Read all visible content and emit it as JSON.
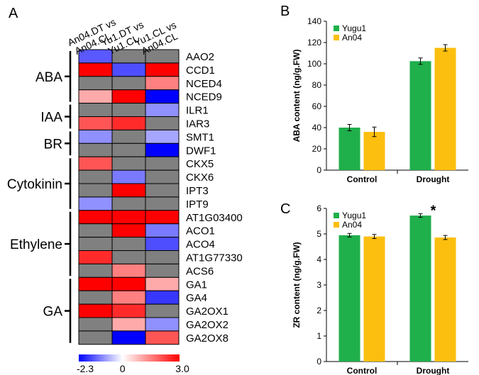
{
  "chart_data": [
    {
      "panel": "A",
      "type": "heatmap",
      "columns": [
        "An04.DT vs An04.CL",
        "Yu1.DT vs Yu1.CL",
        "Yu1.CL vs An04.CL"
      ],
      "column_lines": [
        [
          "An04.DT vs",
          "An04.CL"
        ],
        [
          "Yu1.DT vs",
          "Yu1.CL"
        ],
        [
          "Yu1.CL vs",
          "An04.CL"
        ]
      ],
      "rows": [
        "AAO2",
        "CCD1",
        "NCED4",
        "NCED9",
        "ILR1",
        "IAR3",
        "SMT1",
        "DWF1",
        "CKX5",
        "CKX6",
        "IPT3",
        "IPT9",
        "AT1G03400",
        "ACO1",
        "ACO4",
        "AT1G77330",
        "ACS6",
        "GA1",
        "GA4",
        "GA2OX1",
        "GA2OX2",
        "GA2OX8"
      ],
      "values": [
        [
          -1.5,
          0,
          0
        ],
        [
          3.0,
          -1.6,
          3.0
        ],
        [
          0,
          0,
          1.5
        ],
        [
          1.0,
          3.0,
          -2.3
        ],
        [
          0,
          0,
          -1.0
        ],
        [
          2.0,
          2.5,
          0
        ],
        [
          -1.0,
          0,
          -0.8
        ],
        [
          0,
          0,
          -2.3
        ],
        [
          2.0,
          0,
          0
        ],
        [
          0,
          -1.2,
          0
        ],
        [
          0,
          3.0,
          0
        ],
        [
          -1.0,
          0,
          0
        ],
        [
          3.0,
          3.0,
          3.0
        ],
        [
          0,
          3.0,
          -1.2
        ],
        [
          0,
          0,
          -1.6
        ],
        [
          2.5,
          0,
          0
        ],
        [
          0,
          1.5,
          0
        ],
        [
          3.0,
          3.0,
          1.0
        ],
        [
          0,
          1.5,
          -1.8
        ],
        [
          3.0,
          2.5,
          0
        ],
        [
          0,
          1.0,
          -1.0
        ],
        [
          0,
          -2.3,
          2.0
        ]
      ],
      "groups": [
        {
          "name": "ABA",
          "start": 0,
          "end": 3
        },
        {
          "name": "IAA",
          "start": 4,
          "end": 5
        },
        {
          "name": "BR",
          "start": 6,
          "end": 7
        },
        {
          "name": "Cytokinin",
          "start": 8,
          "end": 11
        },
        {
          "name": "Ethylene",
          "start": 12,
          "end": 16
        },
        {
          "name": "GA",
          "start": 17,
          "end": 21
        }
      ],
      "neutral_color": "#808080",
      "colorbar": {
        "min": -2.3,
        "mid": 0,
        "max": 3.0,
        "min_label": "-2.3",
        "mid_label": "0",
        "max_label": "3.0",
        "low_color": "#0000ff",
        "mid_color": "#ffffff",
        "high_color": "#ff0000"
      }
    },
    {
      "panel": "B",
      "type": "bar",
      "categories": [
        "Control",
        "Drought"
      ],
      "series": [
        {
          "name": "Yugu1",
          "color": "#1faf4b",
          "values": [
            40,
            102.5
          ],
          "errors": [
            3,
            3
          ]
        },
        {
          "name": "An04",
          "color": "#fcbf0f",
          "values": [
            36,
            115
          ],
          "errors": [
            4.5,
            3
          ]
        }
      ],
      "ylabel": "ABA content (ng/g.FW)",
      "ylim": [
        0,
        140
      ],
      "yticks": [
        0,
        20,
        40,
        60,
        80,
        100,
        120,
        140
      ],
      "tick_labels": [
        "0",
        "20",
        "40",
        "60",
        "80",
        "100",
        "120",
        "140"
      ],
      "legend": "top-left",
      "annotations": []
    },
    {
      "panel": "C",
      "type": "bar",
      "categories": [
        "Control",
        "Drought"
      ],
      "series": [
        {
          "name": "Yugu1",
          "color": "#1faf4b",
          "values": [
            4.95,
            5.72
          ],
          "errors": [
            0.07,
            0.07
          ]
        },
        {
          "name": "An04",
          "color": "#fcbf0f",
          "values": [
            4.9,
            4.86
          ],
          "errors": [
            0.08,
            0.08
          ]
        }
      ],
      "ylabel": "ZR content (ng/g.FW)",
      "ylim": [
        0,
        6
      ],
      "yticks": [
        0,
        1,
        2,
        3,
        4,
        5,
        6
      ],
      "tick_labels": [
        "0",
        "1",
        "2",
        "3",
        "4",
        "5",
        "6"
      ],
      "legend": "top-left",
      "annotations": [
        {
          "text": "*",
          "category": 1,
          "series": 0
        }
      ]
    }
  ]
}
